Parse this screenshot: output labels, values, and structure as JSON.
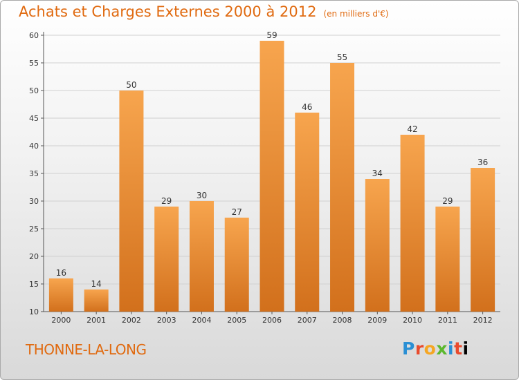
{
  "header": {
    "title": "Achats et Charges Externes 2000 à 2012",
    "subtitle": "(en milliers d'€)"
  },
  "footer": {
    "place": "THONNE-LA-LONG",
    "logo_letters": [
      "P",
      "r",
      "o",
      "x",
      "i",
      "t",
      "i"
    ]
  },
  "colors": {
    "bar_light": "#f7a54e",
    "bar_dark": "#d2701c",
    "title": "#e06a10"
  },
  "chart_data": {
    "type": "bar",
    "categories": [
      "2000",
      "2001",
      "2002",
      "2003",
      "2004",
      "2005",
      "2006",
      "2007",
      "2008",
      "2009",
      "2010",
      "2011",
      "2012"
    ],
    "values": [
      16,
      14,
      50,
      29,
      30,
      27,
      59,
      46,
      55,
      34,
      42,
      29,
      36
    ],
    "ylim": [
      10,
      60
    ],
    "yticks": [
      10,
      15,
      20,
      25,
      30,
      35,
      40,
      45,
      50,
      55,
      60
    ],
    "grid": true
  }
}
